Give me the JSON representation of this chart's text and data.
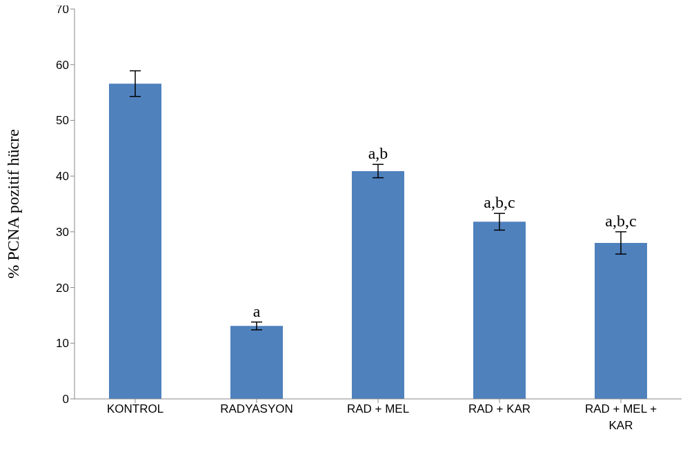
{
  "chart_data": {
    "type": "bar",
    "ylabel": "% PCNA pozitif hücre",
    "categories": [
      "KONTROL",
      "RADYASYON",
      "RAD + MEL",
      "RAD + KAR",
      "RAD + MEL + KAR"
    ],
    "values": [
      56.6,
      13.1,
      40.9,
      31.8,
      28.0
    ],
    "errors": [
      2.3,
      0.7,
      1.2,
      1.5,
      2.0
    ],
    "color": "#4f81bd",
    "ylim": [
      0,
      70
    ],
    "yticks": [
      0,
      10,
      20,
      30,
      40,
      50,
      60,
      70
    ],
    "grid": false,
    "annotations": [
      {
        "text": "a",
        "x": "RADYASYON",
        "y": 13.8
      },
      {
        "text": "a,b",
        "x": "RAD + MEL",
        "y": 42.1
      },
      {
        "text": "a,b,c",
        "x": "RAD + KAR",
        "y": 33.3
      },
      {
        "text": "a,b,c",
        "x": "RAD + MEL + KAR",
        "y": 30.0
      }
    ]
  }
}
